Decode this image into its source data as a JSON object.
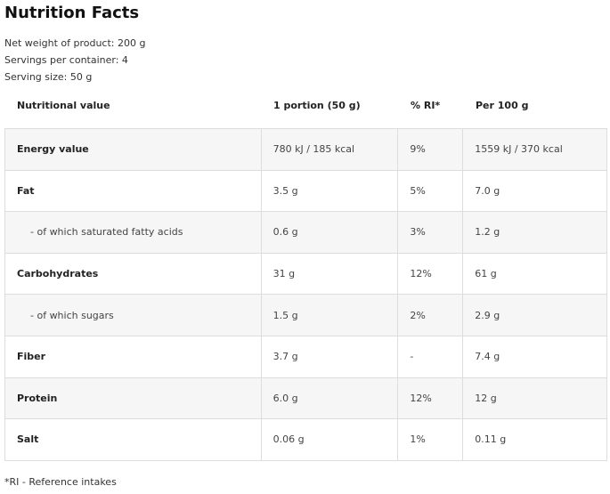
{
  "title": "Nutrition Facts",
  "info": [
    "Net weight of product: 200 g",
    "Servings per container: 4",
    "Serving size: 50 g"
  ],
  "headers": [
    "Nutritional value",
    "1 portion (50 g)",
    "% RI*",
    "Per 100 g"
  ],
  "rows": [
    {
      "name": "Energy value",
      "portion": "780 kJ / 185 kcal",
      "ri": "9%",
      "per100": "1559 kJ / 370 kcal",
      "sub": false
    },
    {
      "name": "Fat",
      "portion": "3.5 g",
      "ri": "5%",
      "per100": "7.0 g",
      "sub": false
    },
    {
      "name": "- of which saturated fatty acids",
      "portion": "0.6 g",
      "ri": "3%",
      "per100": "1.2 g",
      "sub": true
    },
    {
      "name": "Carbohydrates",
      "portion": "31 g",
      "ri": "12%",
      "per100": "61 g",
      "sub": false
    },
    {
      "name": "- of which sugars",
      "portion": "1.5 g",
      "ri": "2%",
      "per100": "2.9 g",
      "sub": true
    },
    {
      "name": "Fiber",
      "portion": "3.7 g",
      "ri": "-",
      "per100": "7.4 g",
      "sub": false
    },
    {
      "name": "Protein",
      "portion": "6.0 g",
      "ri": "12%",
      "per100": "12 g",
      "sub": false
    },
    {
      "name": "Salt",
      "portion": "0.06 g",
      "ri": "1%",
      "per100": "0.11 g",
      "sub": false
    }
  ],
  "footnote": "*RI - Reference intakes"
}
